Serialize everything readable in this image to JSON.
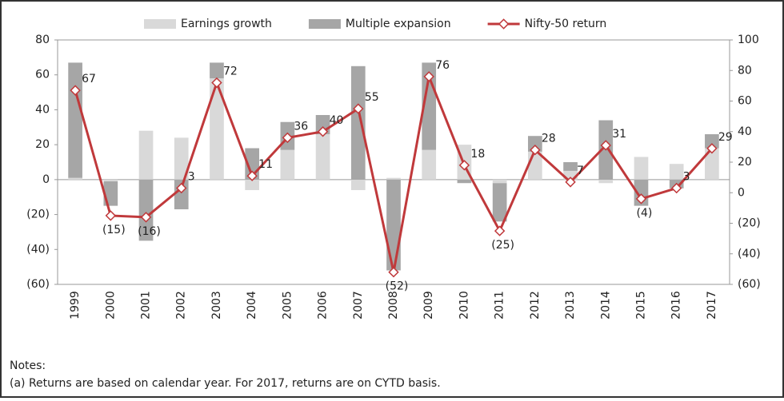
{
  "chart_data": {
    "type": "bar-line",
    "categories": [
      "1999",
      "2000",
      "2001",
      "2002",
      "2003",
      "2004",
      "2005",
      "2006",
      "2007",
      "2008",
      "2009",
      "2010",
      "2011",
      "2012",
      "2013",
      "2014",
      "2015",
      "2016",
      "2017"
    ],
    "series": [
      {
        "name": "Earnings growth",
        "color": "#d9d9d9",
        "type": "bar",
        "values": [
          1,
          -1,
          28,
          24,
          58,
          -6,
          17,
          26,
          -6,
          1,
          17,
          20,
          -2,
          16,
          5,
          -2,
          13,
          9,
          18
        ]
      },
      {
        "name": "Multiple expansion",
        "color": "#a6a6a6",
        "type": "bar",
        "values": [
          66,
          -14,
          -35,
          -17,
          9,
          18,
          16,
          11,
          65,
          -52,
          50,
          -2,
          -22,
          9,
          5,
          34,
          -15,
          -5,
          8
        ]
      },
      {
        "name": "Nifty-50 return",
        "color": "#c0393b",
        "type": "line",
        "axis": "y2",
        "values": [
          67,
          -15,
          -16,
          3,
          72,
          11,
          36,
          40,
          55,
          -52,
          76,
          18,
          -25,
          28,
          7,
          31,
          -4,
          3,
          29
        ],
        "value_labels": [
          "67",
          "(15)",
          "(16)",
          "3",
          "72",
          "11",
          "36",
          "40",
          "55",
          "(52)",
          "76",
          "18",
          "(25)",
          "28",
          "7",
          "31",
          "(4)",
          "3",
          "29"
        ]
      }
    ],
    "ylim": [
      -60,
      80
    ],
    "yticks": [
      {
        "value": -60,
        "label": "(60)"
      },
      {
        "value": -40,
        "label": "(40)"
      },
      {
        "value": -20,
        "label": "(20)"
      },
      0,
      20,
      40,
      60,
      80
    ],
    "y2lim": [
      -60,
      100
    ],
    "y2ticks": [
      {
        "value": -60,
        "label": "(60)"
      },
      {
        "value": -40,
        "label": "(40)"
      },
      {
        "value": -20,
        "label": "(20)"
      },
      0,
      20,
      40,
      60,
      80,
      100
    ],
    "notes": [
      "Notes:",
      "(a) Returns are based on calendar year. For 2017, returns are on CYTD basis."
    ]
  }
}
